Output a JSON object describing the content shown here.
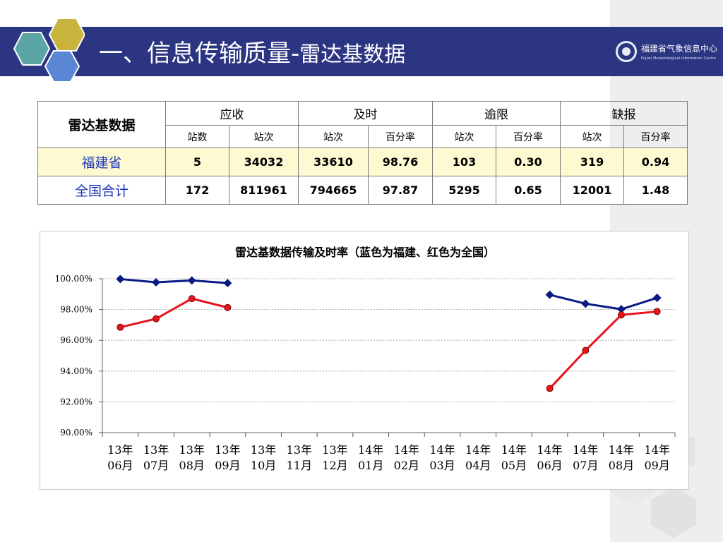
{
  "header": {
    "title_main": "一、信息传输质量-",
    "title_sub": "雷达基数据",
    "logo_name": "福建省气象信息中心",
    "logo_en": "Fujian Meteorological Information Centre"
  },
  "table": {
    "corner": "雷达基数据",
    "groups": [
      "应收",
      "及时",
      "逾限",
      "缺报"
    ],
    "subheaders": [
      "站数",
      "站次",
      "站次",
      "百分率",
      "站次",
      "百分率",
      "站次",
      "百分率"
    ],
    "rows": [
      {
        "region": "福建省",
        "values": [
          "5",
          "34032",
          "33610",
          "98.76",
          "103",
          "0.30",
          "319",
          "0.94"
        ]
      },
      {
        "region": "全国合计",
        "values": [
          "172",
          "811961",
          "794665",
          "97.87",
          "5295",
          "0.65",
          "12001",
          "1.48"
        ]
      }
    ]
  },
  "chart_data": {
    "type": "line",
    "title": "雷达基数据传输及时率（蓝色为福建、红色为全国）",
    "categories": [
      "13年06月",
      "13年07月",
      "13年08月",
      "13年09月",
      "13年10月",
      "13年11月",
      "13年12月",
      "14年01月",
      "14年02月",
      "14年03月",
      "14年04月",
      "14年05月",
      "14年06月",
      "14年07月",
      "14年08月",
      "14年09月"
    ],
    "y_ticks": [
      "100.00%",
      "98.00%",
      "96.00%",
      "94.00%",
      "92.00%",
      "90.00%"
    ],
    "ylim": [
      90,
      100
    ],
    "grid": true,
    "series": [
      {
        "color": "#0b1a82",
        "marker": "diamond",
        "values": [
          99.98,
          99.77,
          99.89,
          99.72,
          null,
          null,
          null,
          null,
          null,
          null,
          null,
          null,
          98.96,
          98.38,
          98.02,
          98.76
        ]
      },
      {
        "color": "#e8131b",
        "marker": "circle",
        "values": [
          96.85,
          97.4,
          98.71,
          98.13,
          null,
          null,
          null,
          null,
          null,
          null,
          null,
          null,
          92.87,
          95.34,
          97.65,
          97.87
        ]
      }
    ]
  }
}
